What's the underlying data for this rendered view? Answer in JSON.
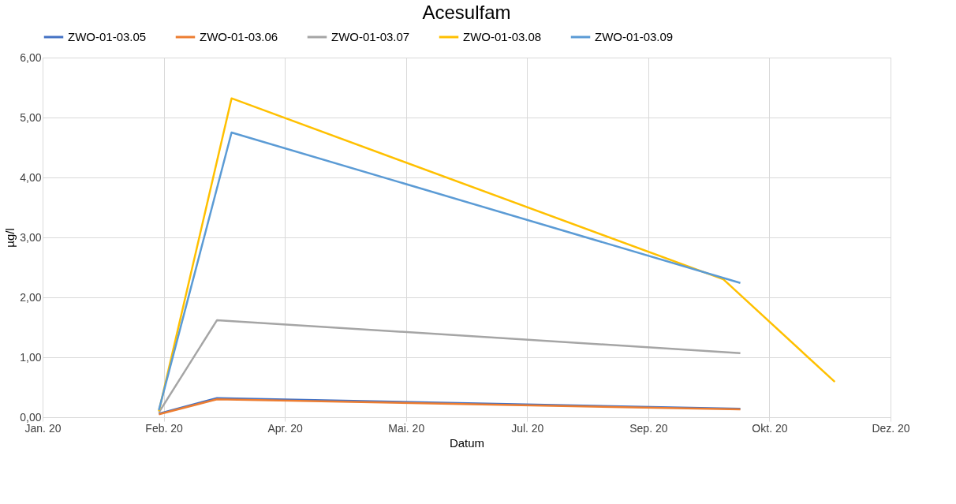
{
  "chart_data": {
    "type": "line",
    "title": "Acesulfam",
    "xlabel": "Datum",
    "ylabel": "µg/l",
    "series": [
      {
        "name": "ZWO-01-03.05",
        "color": "#4472c4",
        "x": [
          "2020-02-18",
          "2020-03-13",
          "2020-10-15"
        ],
        "values": [
          0.06,
          0.32,
          0.14
        ]
      },
      {
        "name": "ZWO-01-03.06",
        "color": "#ed7d31",
        "x": [
          "2020-02-18",
          "2020-03-13",
          "2020-10-15"
        ],
        "values": [
          0.05,
          0.3,
          0.13
        ]
      },
      {
        "name": "ZWO-01-03.07",
        "color": "#a5a5a5",
        "x": [
          "2020-02-18",
          "2020-03-13",
          "2020-10-15"
        ],
        "values": [
          0.08,
          1.62,
          1.07
        ]
      },
      {
        "name": "ZWO-01-03.08",
        "color": "#ffc000",
        "x": [
          "2020-02-18",
          "2020-03-19",
          "2020-10-08",
          "2020-11-23"
        ],
        "values": [
          0.1,
          5.32,
          2.3,
          0.59
        ]
      },
      {
        "name": "ZWO-01-03.09",
        "color": "#5b9bd5",
        "x": [
          "2020-02-18",
          "2020-03-19",
          "2020-10-15"
        ],
        "values": [
          0.12,
          4.75,
          2.24
        ]
      }
    ],
    "xlim": [
      "2020-01-01",
      "2020-12-16"
    ],
    "xticks": [
      {
        "value": "2020-01-01",
        "label": "Jan. 20"
      },
      {
        "value": "2020-02-20",
        "label": "Feb. 20"
      },
      {
        "value": "2020-04-10",
        "label": "Apr. 20"
      },
      {
        "value": "2020-05-30",
        "label": "Mai. 20"
      },
      {
        "value": "2020-07-19",
        "label": "Jul. 20"
      },
      {
        "value": "2020-09-07",
        "label": "Sep. 20"
      },
      {
        "value": "2020-10-27",
        "label": "Okt. 20"
      },
      {
        "value": "2020-12-16",
        "label": "Dez. 20"
      }
    ],
    "ylim": [
      0,
      6
    ],
    "yticks": [
      {
        "value": 0,
        "label": "0,00"
      },
      {
        "value": 1,
        "label": "1,00"
      },
      {
        "value": 2,
        "label": "2,00"
      },
      {
        "value": 3,
        "label": "3,00"
      },
      {
        "value": 4,
        "label": "4,00"
      },
      {
        "value": 5,
        "label": "5,00"
      },
      {
        "value": 6,
        "label": "6,00"
      }
    ],
    "grid": true,
    "legend": "top",
    "marker": "none",
    "line_style": "solid"
  }
}
